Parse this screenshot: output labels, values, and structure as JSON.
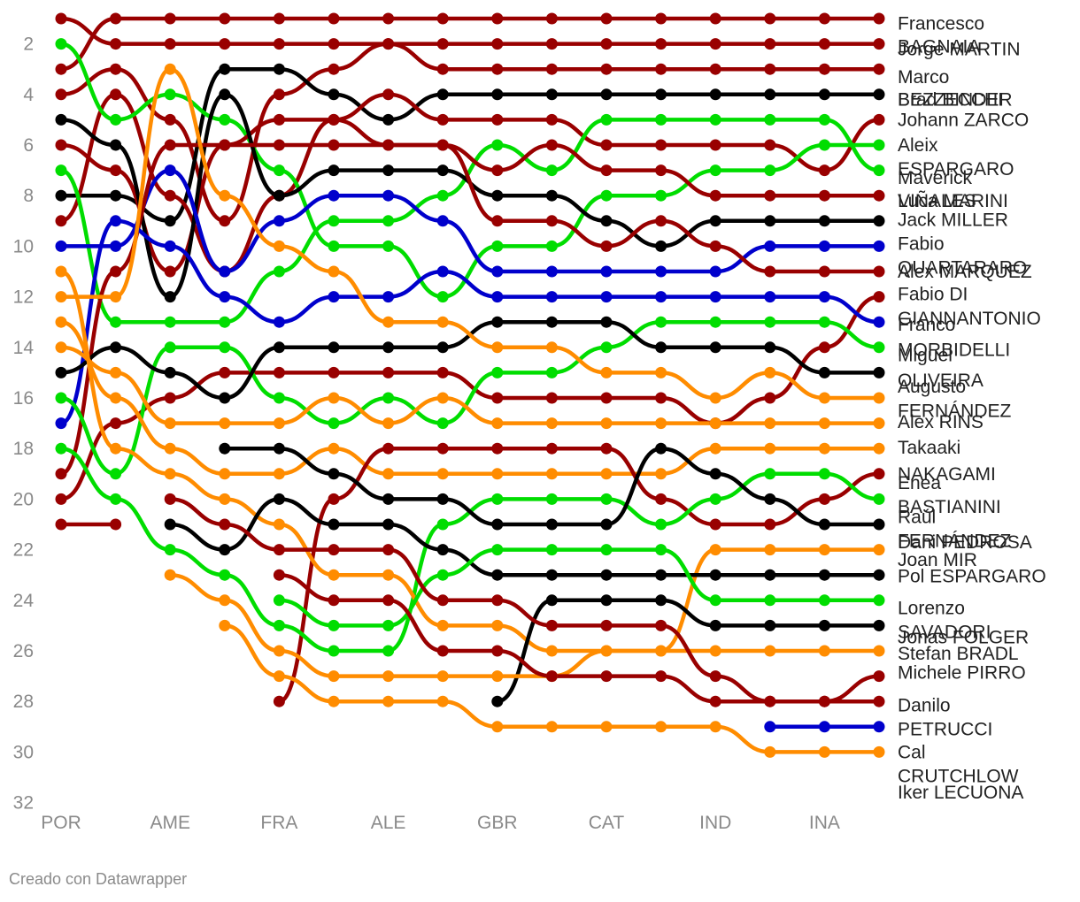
{
  "footer": "Creado con Datawrapper",
  "colors": {
    "dark_red": "#990000",
    "black": "#000000",
    "green": "#00dd00",
    "orange": "#ff8c00",
    "blue": "#0000cc"
  },
  "chart_data": {
    "type": "line",
    "ylim": [
      32,
      1
    ],
    "y_ticks": [
      2,
      4,
      6,
      8,
      10,
      12,
      14,
      16,
      18,
      20,
      22,
      24,
      26,
      28,
      30,
      32
    ],
    "x_ticks": [
      "POR",
      "AME",
      "FRA",
      "ALE",
      "GBR",
      "CAT",
      "IND",
      "INA"
    ],
    "x_tick_rounds": [
      1,
      3,
      5,
      7,
      9,
      11,
      13,
      15
    ],
    "rounds": 16,
    "series": [
      {
        "name": "Francesco BAGNAIA",
        "color": "#990000",
        "values": [
          3,
          1,
          1,
          1,
          1,
          1,
          1,
          1,
          1,
          1,
          1,
          1,
          1,
          1,
          1,
          1
        ]
      },
      {
        "name": "Jorge MARTIN",
        "color": "#990000",
        "values": [
          1,
          2,
          2,
          2,
          2,
          2,
          2,
          2,
          2,
          2,
          2,
          2,
          2,
          2,
          2,
          2
        ]
      },
      {
        "name": "Marco BEZZECCHI",
        "color": "#990000",
        "values": [
          4,
          3,
          5,
          9,
          4,
          3,
          2,
          3,
          3,
          3,
          3,
          3,
          3,
          3,
          3,
          3
        ]
      },
      {
        "name": "Brad BINDER",
        "color": "#000000",
        "values": [
          8,
          8,
          9,
          3,
          3,
          4,
          5,
          4,
          4,
          4,
          4,
          4,
          4,
          4,
          4,
          4
        ]
      },
      {
        "name": "Johann ZARCO",
        "color": "#990000",
        "values": [
          9,
          4,
          8,
          11,
          8,
          5,
          4,
          5,
          5,
          5,
          6,
          6,
          6,
          6,
          7,
          5
        ]
      },
      {
        "name": "Aleix ESPARGARO",
        "color": "#00dd00",
        "values": [
          2,
          5,
          4,
          5,
          7,
          10,
          10,
          12,
          10,
          10,
          8,
          8,
          7,
          7,
          6,
          6
        ]
      },
      {
        "name": "Maverick VIÑALES",
        "color": "#00dd00",
        "values": [
          7,
          13,
          13,
          13,
          11,
          9,
          9,
          8,
          6,
          7,
          5,
          5,
          5,
          5,
          5,
          7
        ]
      },
      {
        "name": "Luca MARINI",
        "color": "#990000",
        "values": [
          6,
          7,
          11,
          6,
          5,
          5,
          6,
          6,
          7,
          6,
          7,
          7,
          8,
          8,
          8,
          8
        ]
      },
      {
        "name": "Jack MILLER",
        "color": "#000000",
        "values": [
          5,
          6,
          12,
          4,
          8,
          7,
          7,
          7,
          8,
          8,
          9,
          10,
          9,
          9,
          9,
          9
        ]
      },
      {
        "name": "Fabio QUARTARARO",
        "color": "#0000cc",
        "values": [
          10,
          10,
          7,
          11,
          9,
          8,
          8,
          9,
          11,
          11,
          11,
          11,
          11,
          10,
          10,
          10
        ]
      },
      {
        "name": "Alex MARQUEZ",
        "color": "#990000",
        "values": [
          19,
          11,
          6,
          6,
          6,
          6,
          6,
          6,
          9,
          9,
          10,
          9,
          10,
          11,
          11,
          11
        ]
      },
      {
        "name": "Fabio DI GIANNANTONIO",
        "color": "#990000",
        "values": [
          20,
          17,
          16,
          15,
          15,
          15,
          15,
          15,
          16,
          16,
          16,
          16,
          17,
          16,
          14,
          12
        ]
      },
      {
        "name": "Franco MORBIDELLI",
        "color": "#0000cc",
        "values": [
          17,
          9,
          10,
          12,
          13,
          12,
          12,
          11,
          12,
          12,
          12,
          12,
          12,
          12,
          12,
          13
        ]
      },
      {
        "name": "Miguel OLIVEIRA",
        "color": "#00dd00",
        "values": [
          16,
          19,
          14,
          14,
          16,
          17,
          16,
          17,
          15,
          15,
          14,
          13,
          13,
          13,
          13,
          14
        ]
      },
      {
        "name": "Augusto FERNÁNDEZ",
        "color": "#000000",
        "values": [
          15,
          14,
          15,
          16,
          14,
          14,
          14,
          14,
          13,
          13,
          13,
          14,
          14,
          14,
          15,
          15
        ]
      },
      {
        "name": "Alex RINS",
        "color": "#ff8c00",
        "values": [
          12,
          12,
          3,
          8,
          10,
          11,
          13,
          13,
          14,
          14,
          15,
          15,
          16,
          15,
          16,
          16
        ]
      },
      {
        "name": "Takaaki NAKAGAMI",
        "color": "#ff8c00",
        "values": [
          14,
          15,
          17,
          17,
          17,
          16,
          17,
          16,
          17,
          17,
          17,
          17,
          17,
          17,
          17,
          17
        ]
      },
      {
        "name": "Enea BASTIANINI",
        "color": "#ff8c00",
        "values": [
          13,
          16,
          18,
          19,
          19,
          18,
          19,
          19,
          19,
          19,
          19,
          19,
          18,
          18,
          18,
          18
        ]
      },
      {
        "name": "Raúl FERNÁNDEZ",
        "color": "#990000",
        "values": [
          21,
          21,
          null,
          null,
          28,
          20,
          18,
          18,
          18,
          18,
          18,
          20,
          21,
          21,
          20,
          19
        ]
      },
      {
        "name": "Dani PEDROSA",
        "color": "#00dd00",
        "values": [
          18,
          20,
          22,
          23,
          25,
          26,
          26,
          21,
          20,
          20,
          20,
          21,
          20,
          19,
          19,
          20
        ]
      },
      {
        "name": "Joan MIR",
        "color": "#000000",
        "values": [
          null,
          null,
          null,
          18,
          18,
          19,
          20,
          20,
          21,
          21,
          21,
          18,
          19,
          20,
          21,
          21
        ]
      },
      {
        "name": "Pol ESPARGARO",
        "color": "#ff8c00",
        "values": [
          11,
          18,
          19,
          20,
          21,
          23,
          23,
          25,
          25,
          26,
          26,
          26,
          22,
          22,
          22,
          22
        ]
      },
      {
        "name": "Lorenzo SAVADORI",
        "color": "#000000",
        "values": [
          null,
          null,
          21,
          22,
          20,
          21,
          21,
          22,
          23,
          23,
          23,
          23,
          23,
          23,
          23,
          23
        ]
      },
      {
        "name": "Jonas FOLGER",
        "color": "#00dd00",
        "values": [
          null,
          null,
          null,
          null,
          24,
          25,
          25,
          23,
          22,
          22,
          22,
          22,
          24,
          24,
          24,
          24
        ]
      },
      {
        "name": "Stefan BRADL",
        "color": "#000000",
        "values": [
          null,
          null,
          null,
          null,
          null,
          null,
          null,
          null,
          28,
          24,
          24,
          24,
          25,
          25,
          25,
          25
        ]
      },
      {
        "name": "Michele PIRRO",
        "color": "#ff8c00",
        "values": [
          null,
          null,
          23,
          24,
          26,
          27,
          27,
          27,
          27,
          27,
          26,
          26,
          26,
          26,
          26,
          26
        ]
      },
      {
        "name": "Danilo PETRUCCI",
        "color": "#990000",
        "values": [
          null,
          null,
          null,
          null,
          23,
          24,
          24,
          26,
          26,
          27,
          27,
          27,
          28,
          28,
          28,
          27
        ]
      },
      {
        "name": "Cal CRUTCHLOW",
        "color": "#990000",
        "values": [
          null,
          null,
          20,
          21,
          22,
          22,
          22,
          24,
          24,
          25,
          25,
          25,
          27,
          28,
          28,
          28
        ]
      },
      {
        "name": "Iker LECUONA",
        "color": "#0000cc",
        "values": [
          null,
          null,
          null,
          null,
          null,
          null,
          null,
          null,
          null,
          null,
          null,
          null,
          null,
          29,
          29,
          29
        ]
      },
      {
        "name": "Iker LECUONA (2)",
        "color": "#ff8c00",
        "values": [
          null,
          null,
          null,
          25,
          27,
          28,
          28,
          28,
          29,
          29,
          29,
          29,
          29,
          30,
          30,
          30
        ]
      }
    ],
    "right_labels": [
      {
        "text": "Francesco",
        "y": 1.2
      },
      {
        "text": "BAGNAIA",
        "y": 2.1
      },
      {
        "text": "Jorge MARTIN",
        "y": 2.2
      },
      {
        "text": "Marco",
        "y": 3.3
      },
      {
        "text": "BEZZECCHI",
        "y": 4.2
      },
      {
        "text": "Brad BINDER",
        "y": 4.2
      },
      {
        "text": "Johann ZARCO",
        "y": 5.0
      },
      {
        "text": "Aleix",
        "y": 6.0
      },
      {
        "text": "ESPARGARO",
        "y": 6.95
      },
      {
        "text": "Maverick",
        "y": 7.3
      },
      {
        "text": "VIÑALES",
        "y": 8.2
      },
      {
        "text": "Luca MARINI",
        "y": 8.2
      },
      {
        "text": "Jack MILLER",
        "y": 8.95
      },
      {
        "text": "Fabio",
        "y": 9.9
      },
      {
        "text": "QUARTARARO",
        "y": 10.85
      },
      {
        "text": "Alex MARQUEZ",
        "y": 11.0
      },
      {
        "text": "Fabio DI",
        "y": 11.9
      },
      {
        "text": "GIANNANTONIO",
        "y": 12.85
      },
      {
        "text": "Franco",
        "y": 13.1
      },
      {
        "text": "MORBIDELLI",
        "y": 14.1
      },
      {
        "text": "Miguel",
        "y": 14.3
      },
      {
        "text": "OLIVEIRA",
        "y": 15.3
      },
      {
        "text": "Augusto",
        "y": 15.55
      },
      {
        "text": "FERNÁNDEZ",
        "y": 16.5
      },
      {
        "text": "Alex RINS",
        "y": 16.95
      },
      {
        "text": "Takaaki",
        "y": 17.95
      },
      {
        "text": "NAKAGAMI",
        "y": 19.0
      },
      {
        "text": "Enea",
        "y": 19.35
      },
      {
        "text": "BASTIANINI",
        "y": 20.3
      },
      {
        "text": "Raúl",
        "y": 20.7
      },
      {
        "text": "FERNÁNDEZ",
        "y": 21.65
      },
      {
        "text": "Dani PEDROSA",
        "y": 21.7
      },
      {
        "text": "Joan MIR",
        "y": 22.4
      },
      {
        "text": "Pol ESPARGARO",
        "y": 23.05
      },
      {
        "text": "Lorenzo",
        "y": 24.3
      },
      {
        "text": "SAVADORI",
        "y": 25.25
      },
      {
        "text": "Jonas FOLGER",
        "y": 25.45
      },
      {
        "text": "Stefan BRADL",
        "y": 26.1
      },
      {
        "text": "Michele PIRRO",
        "y": 26.85
      },
      {
        "text": "Danilo",
        "y": 28.15
      },
      {
        "text": "PETRUCCI",
        "y": 29.1
      },
      {
        "text": "Cal",
        "y": 30.0
      },
      {
        "text": "CRUTCHLOW",
        "y": 30.95
      },
      {
        "text": "Iker LECUONA",
        "y": 31.6
      }
    ]
  }
}
